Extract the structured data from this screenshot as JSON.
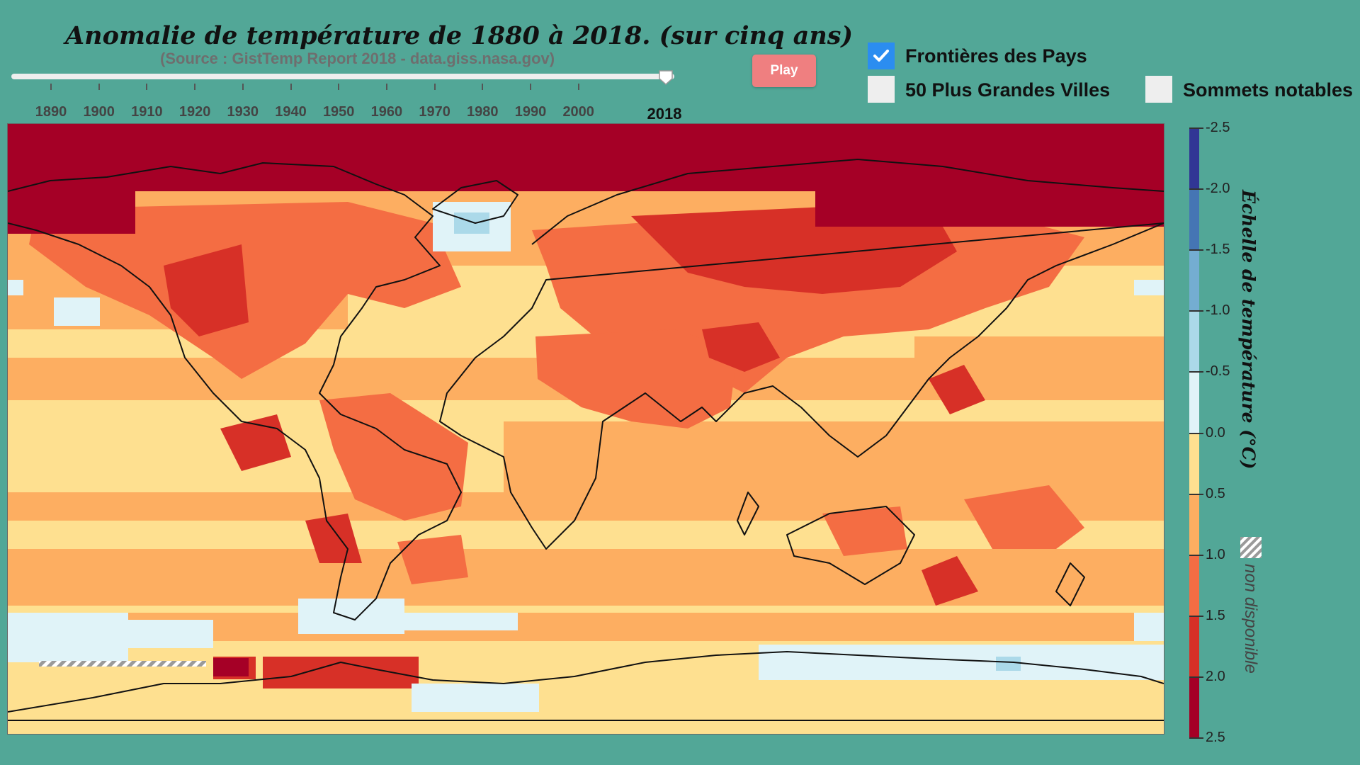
{
  "header": {
    "title": "Anomalie de température de 1880 à 2018. (sur cinq ans)",
    "subtitle": "(Source : GistTemp Report 2018 - data.giss.nasa.gov)"
  },
  "slider": {
    "min": 1880,
    "max": 2018,
    "value": 2018,
    "current_label": "2018",
    "tick_labels": [
      "1890",
      "1900",
      "1910",
      "1920",
      "1930",
      "1940",
      "1950",
      "1960",
      "1970",
      "1980",
      "1990",
      "2000"
    ]
  },
  "controls": {
    "play_label": "Play",
    "toggles": [
      {
        "label": "Frontières des Pays",
        "checked": true
      },
      {
        "label": "50 Plus Grandes Villes",
        "checked": false
      },
      {
        "label": "Sommets notables",
        "checked": false
      }
    ]
  },
  "legend": {
    "title": "Échelle de température (°C)",
    "ticks": [
      "-2.5",
      "-2.0",
      "-1.5",
      "-1.0",
      "-0.5",
      "0.0",
      "0.5",
      "1.0",
      "1.5",
      "2.0",
      "2.5"
    ],
    "colors": [
      "#313695",
      "#4575b4",
      "#74add1",
      "#abd9e9",
      "#e0f3f8",
      "#fee090",
      "#fdae61",
      "#f46d43",
      "#d73027",
      "#a50026"
    ],
    "na_label": "non disponible"
  },
  "map": {
    "projection": "equirectangular",
    "layers": [
      "temperature-anomaly-grid",
      "country-borders"
    ],
    "colors": {
      "ocean_warm_low": "#fee090",
      "ocean_warm_mid": "#fdae61",
      "land_warm": "#f46d43",
      "hot": "#d73027",
      "very_hot": "#a50026",
      "cool": "#e0f3f8",
      "cooler": "#abd9e9",
      "border": "#111111"
    }
  }
}
